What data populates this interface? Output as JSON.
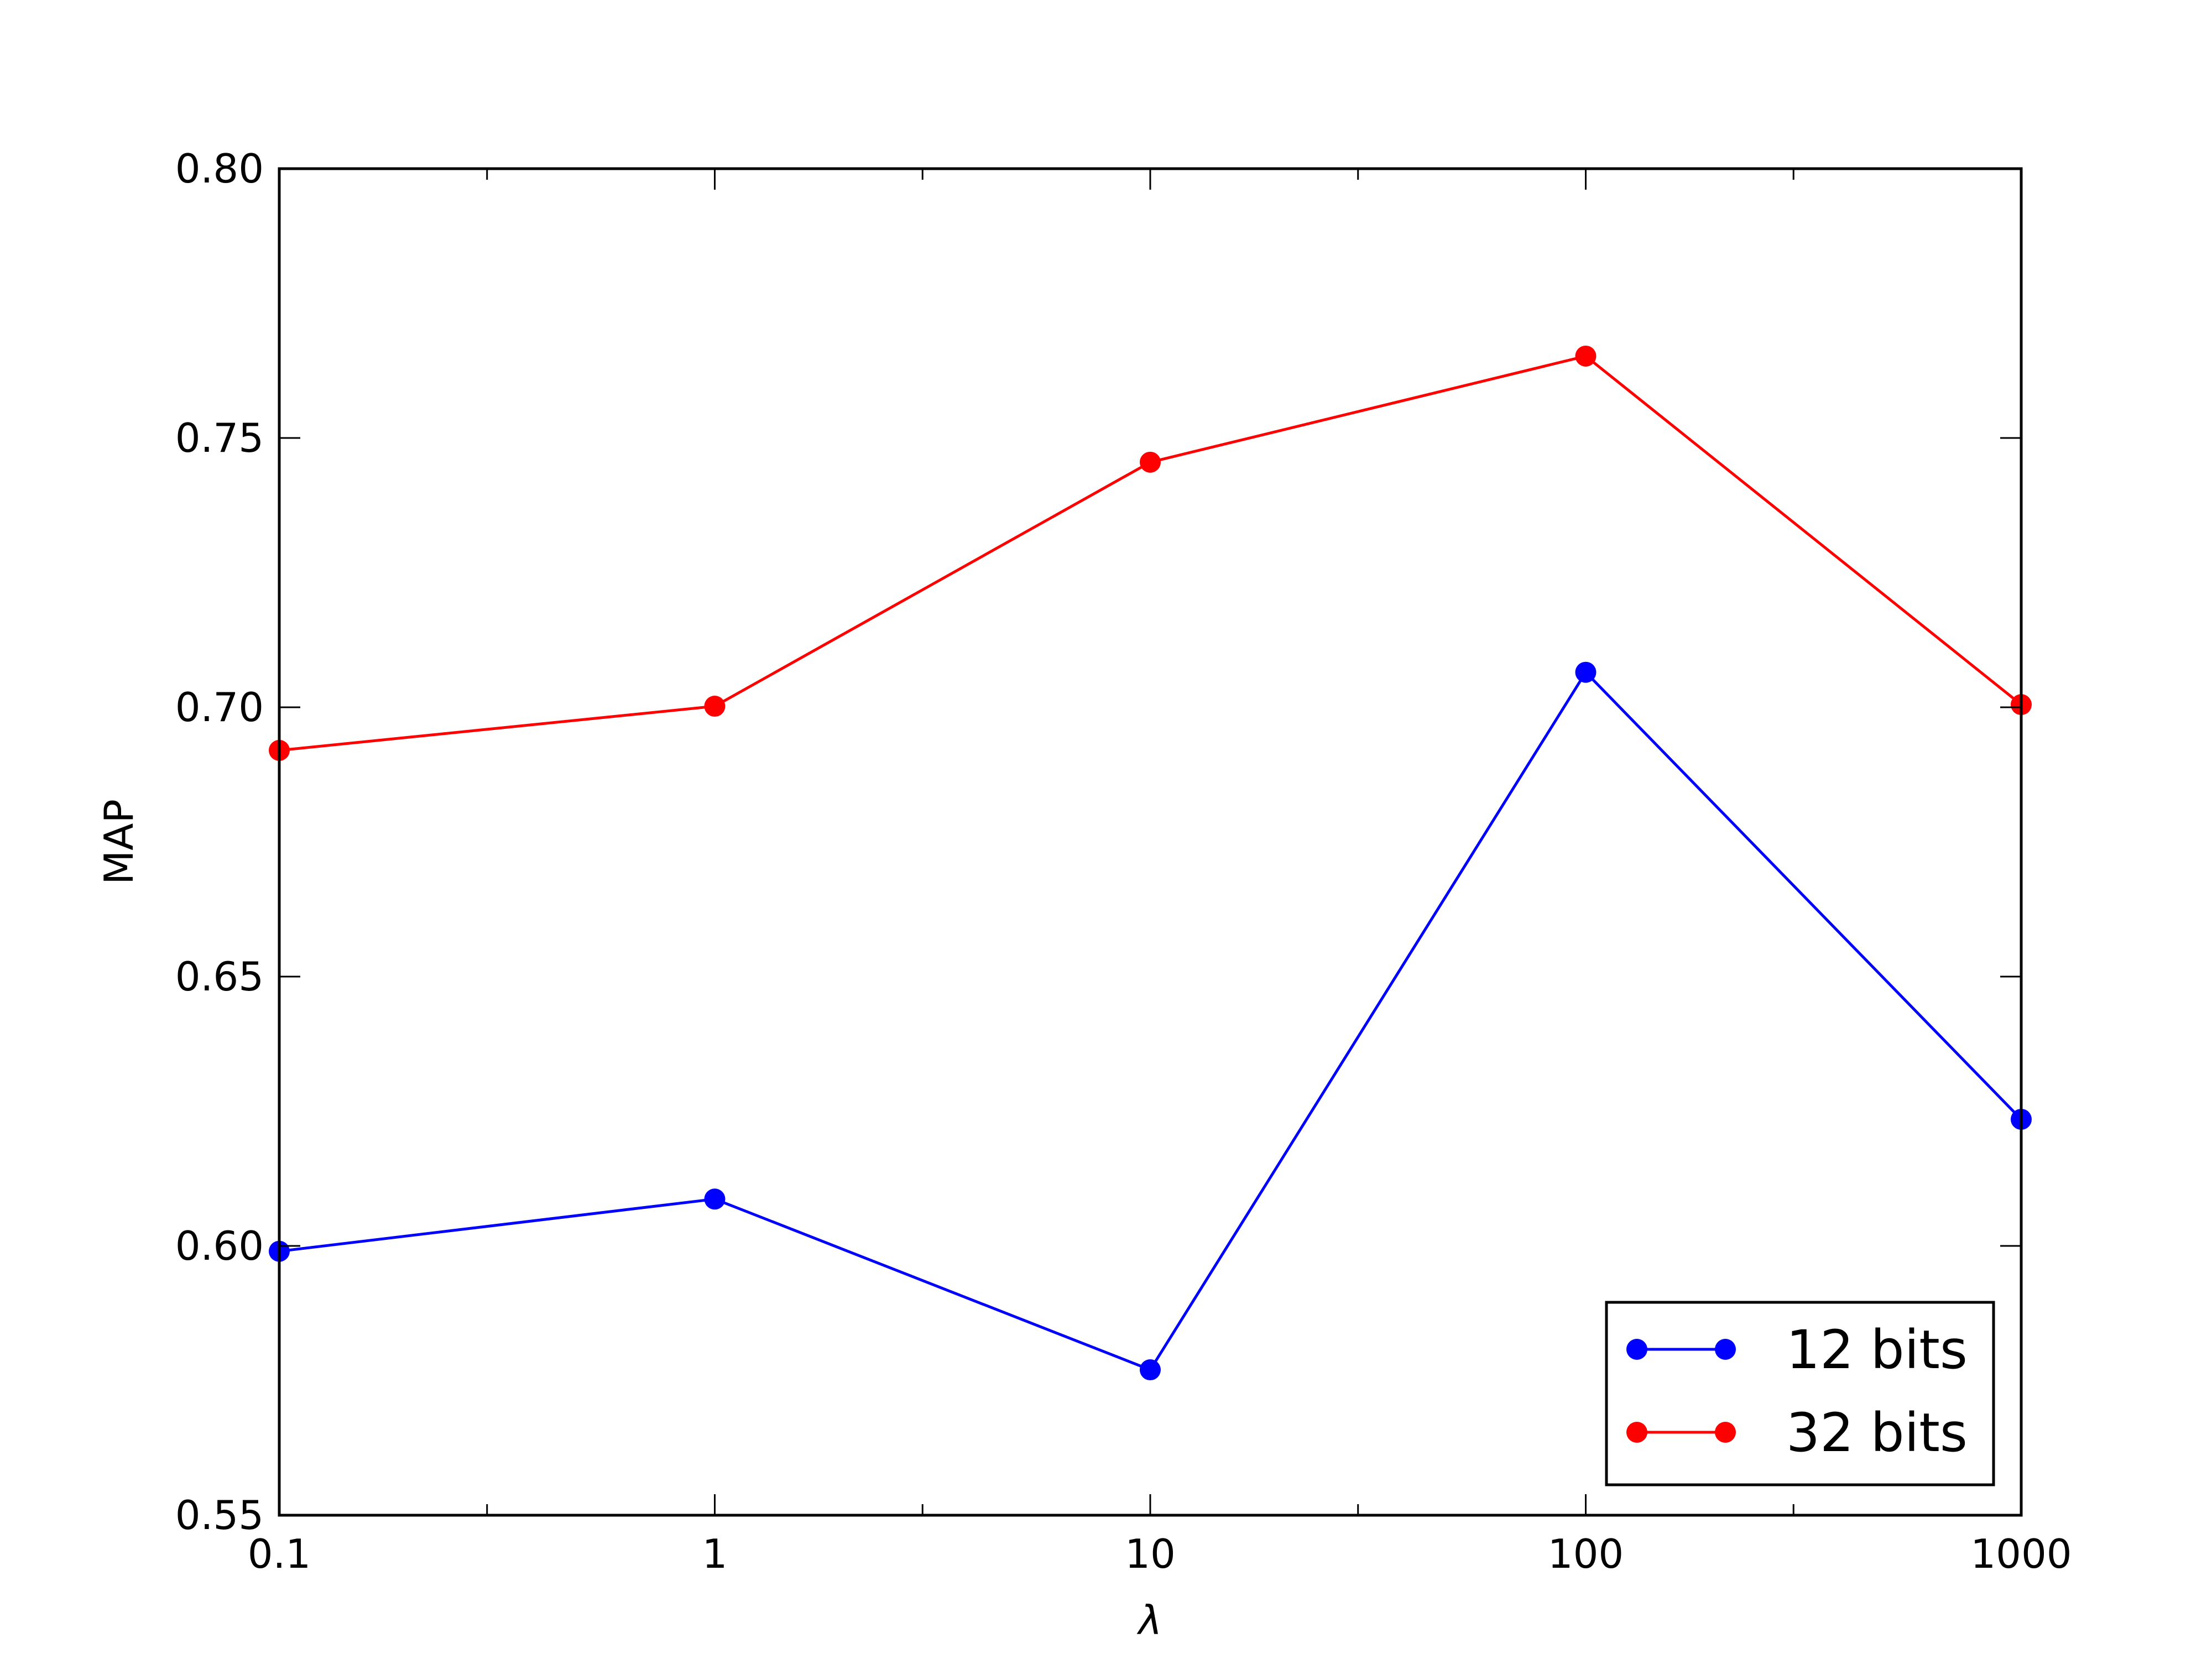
{
  "chart_data": {
    "type": "line",
    "x_scale": "log",
    "x": [
      0.1,
      1,
      10,
      100,
      1000
    ],
    "x_tick_labels": [
      "0.1",
      "1",
      "10",
      "100",
      "1000"
    ],
    "y_tick_labels": [
      "0.55",
      "0.60",
      "0.65",
      "0.70",
      "0.75",
      "0.80"
    ],
    "xlim": [
      0.1,
      1000
    ],
    "ylim": [
      0.55,
      0.8
    ],
    "xlabel": "λ",
    "ylabel": "MAP",
    "grid": false,
    "legend_position": "bottom-right",
    "series": [
      {
        "name": "12 bits",
        "color": "#0000ff",
        "values": [
          0.599,
          0.6087,
          0.577,
          0.7065,
          0.6235
        ]
      },
      {
        "name": "32 bits",
        "color": "#ff0000",
        "values": [
          0.692,
          0.7002,
          0.7455,
          0.7652,
          0.7005
        ]
      }
    ]
  }
}
